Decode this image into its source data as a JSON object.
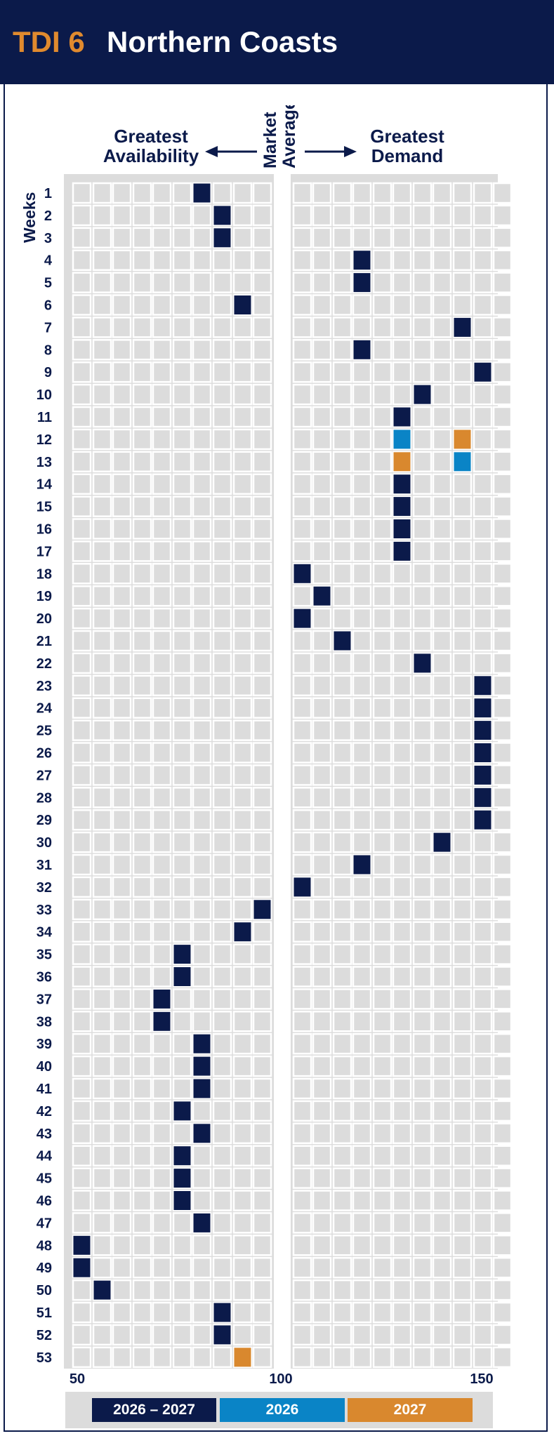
{
  "header": {
    "code": "TDI 6",
    "name": "Northern Coasts"
  },
  "headings": {
    "left_line1": "Greatest",
    "left_line2": "Availability",
    "center_line1": "Market",
    "center_line2": "Average",
    "right_line1": "Greatest",
    "right_line2": "Demand"
  },
  "colors": {
    "navy": "#0b1a4a",
    "blue": "#0a84c6",
    "orange": "#d9882e",
    "cell": "#dcdcdc",
    "header_bg": "#0b1a4a",
    "accent": "#e08a2e"
  },
  "chart_data": {
    "type": "heatmap",
    "ylabel": "Weeks",
    "x_ticks": [
      "50",
      "100",
      "150"
    ],
    "x_range": [
      50,
      150
    ],
    "weeks": [
      1,
      2,
      3,
      4,
      5,
      6,
      7,
      8,
      9,
      10,
      11,
      12,
      13,
      14,
      15,
      16,
      17,
      18,
      19,
      20,
      21,
      22,
      23,
      24,
      25,
      26,
      27,
      28,
      29,
      30,
      31,
      32,
      33,
      34,
      35,
      36,
      37,
      38,
      39,
      40,
      41,
      42,
      43,
      44,
      45,
      46,
      47,
      48,
      49,
      50,
      51,
      52,
      53
    ],
    "series": [
      {
        "name": "2026 – 2027",
        "color": "#0b1a4a",
        "points": [
          {
            "week": 1,
            "value": 80
          },
          {
            "week": 2,
            "value": 85
          },
          {
            "week": 3,
            "value": 85
          },
          {
            "week": 4,
            "value": 120
          },
          {
            "week": 5,
            "value": 120
          },
          {
            "week": 6,
            "value": 90
          },
          {
            "week": 7,
            "value": 145
          },
          {
            "week": 8,
            "value": 120
          },
          {
            "week": 9,
            "value": 150
          },
          {
            "week": 10,
            "value": 135
          },
          {
            "week": 11,
            "value": 130
          },
          {
            "week": 14,
            "value": 130
          },
          {
            "week": 15,
            "value": 130
          },
          {
            "week": 16,
            "value": 130
          },
          {
            "week": 17,
            "value": 130
          },
          {
            "week": 18,
            "value": 105
          },
          {
            "week": 19,
            "value": 110
          },
          {
            "week": 20,
            "value": 105
          },
          {
            "week": 21,
            "value": 115
          },
          {
            "week": 22,
            "value": 135
          },
          {
            "week": 23,
            "value": 150
          },
          {
            "week": 24,
            "value": 150
          },
          {
            "week": 25,
            "value": 150
          },
          {
            "week": 26,
            "value": 150
          },
          {
            "week": 27,
            "value": 150
          },
          {
            "week": 28,
            "value": 150
          },
          {
            "week": 29,
            "value": 150
          },
          {
            "week": 30,
            "value": 140
          },
          {
            "week": 31,
            "value": 120
          },
          {
            "week": 32,
            "value": 105
          },
          {
            "week": 33,
            "value": 95
          },
          {
            "week": 34,
            "value": 90
          },
          {
            "week": 35,
            "value": 75
          },
          {
            "week": 36,
            "value": 75
          },
          {
            "week": 37,
            "value": 70
          },
          {
            "week": 38,
            "value": 70
          },
          {
            "week": 39,
            "value": 80
          },
          {
            "week": 40,
            "value": 80
          },
          {
            "week": 41,
            "value": 80
          },
          {
            "week": 42,
            "value": 75
          },
          {
            "week": 43,
            "value": 80
          },
          {
            "week": 44,
            "value": 75
          },
          {
            "week": 45,
            "value": 75
          },
          {
            "week": 46,
            "value": 75
          },
          {
            "week": 47,
            "value": 80
          },
          {
            "week": 48,
            "value": 50
          },
          {
            "week": 49,
            "value": 50
          },
          {
            "week": 50,
            "value": 55
          },
          {
            "week": 51,
            "value": 85
          },
          {
            "week": 52,
            "value": 85
          }
        ]
      },
      {
        "name": "2026",
        "color": "#0a84c6",
        "points": [
          {
            "week": 12,
            "value": 130
          },
          {
            "week": 13,
            "value": 145
          }
        ]
      },
      {
        "name": "2027",
        "color": "#d9882e",
        "points": [
          {
            "week": 12,
            "value": 145
          },
          {
            "week": 13,
            "value": 130
          },
          {
            "week": 53,
            "value": 90
          }
        ]
      }
    ],
    "legend": [
      "2026 – 2027",
      "2026",
      "2027"
    ],
    "legend_placement": "bottom"
  }
}
